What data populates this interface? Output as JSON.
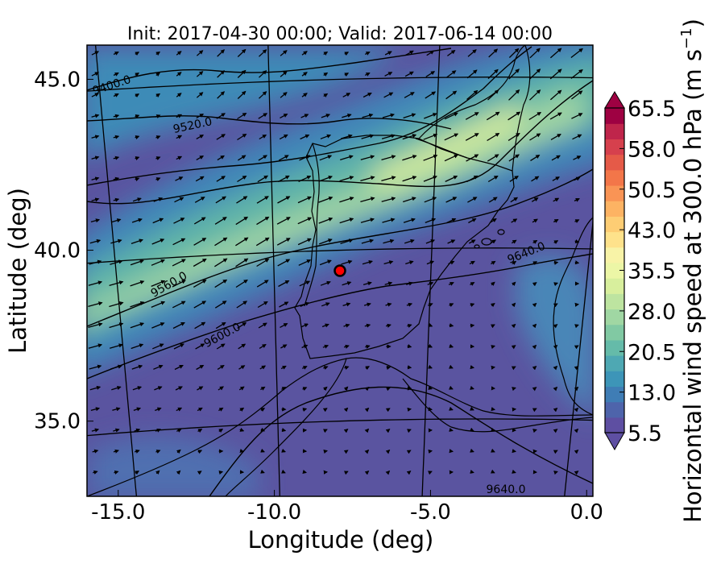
{
  "title": "Init: 2017-04-30 00:00; Valid: 2017-06-14 00:00",
  "axes": {
    "xlabel": "Longitude (deg)",
    "ylabel": "Latitude (deg)",
    "xticks": [
      {
        "value": -15,
        "label": "-15.0"
      },
      {
        "value": -10,
        "label": "-10.0"
      },
      {
        "value": -5,
        "label": "-5.0"
      },
      {
        "value": 0,
        "label": "0.0"
      }
    ],
    "yticks": [
      {
        "value": 45,
        "label": "45.0"
      },
      {
        "value": 40,
        "label": "40.0"
      },
      {
        "value": 35,
        "label": "35.0"
      }
    ],
    "xlim": [
      -16,
      0.2
    ],
    "ylim": [
      32.8,
      46
    ]
  },
  "colorbar": {
    "label": "Horizontal wind speed at 300.0 hPa (m s",
    "label_exp": "−1",
    "label_close": ")",
    "ticks": [
      "5.5",
      "13.0",
      "20.5",
      "28.0",
      "35.5",
      "43.0",
      "50.5",
      "58.0",
      "65.5"
    ],
    "colors": [
      "#5e4fa2",
      "#4e64ab",
      "#3f7db5",
      "#3d95b8",
      "#4ea8b3",
      "#65bba9",
      "#81c9a3",
      "#a0d7a3",
      "#bde4a0",
      "#d8ef9d",
      "#ecf6a6",
      "#f8f3a7",
      "#fee28b",
      "#fdcd74",
      "#fdb363",
      "#f99455",
      "#f37649",
      "#e55a48",
      "#d6404d",
      "#bf254b",
      "#9e0142"
    ],
    "under_color": "#5e4fa2",
    "over_color": "#9e0142"
  },
  "contours": [
    {
      "label": "9400.0"
    },
    {
      "label": "9520.0"
    },
    {
      "label": "9560.0"
    },
    {
      "label": "9600.0"
    },
    {
      "label": "9640.0"
    },
    {
      "label": "9640.0"
    }
  ],
  "marker": {
    "lon": -7.7,
    "lat": 39.3,
    "color": "#ff0000"
  },
  "jet_stream": [
    {
      "x": -16,
      "y": 38.0
    },
    {
      "x": -12,
      "y": 39.6
    },
    {
      "x": -8,
      "y": 41.4
    },
    {
      "x": -5,
      "y": 42.9
    },
    {
      "x": -2,
      "y": 44.6
    },
    {
      "x": 0.2,
      "y": 45.9
    }
  ]
}
